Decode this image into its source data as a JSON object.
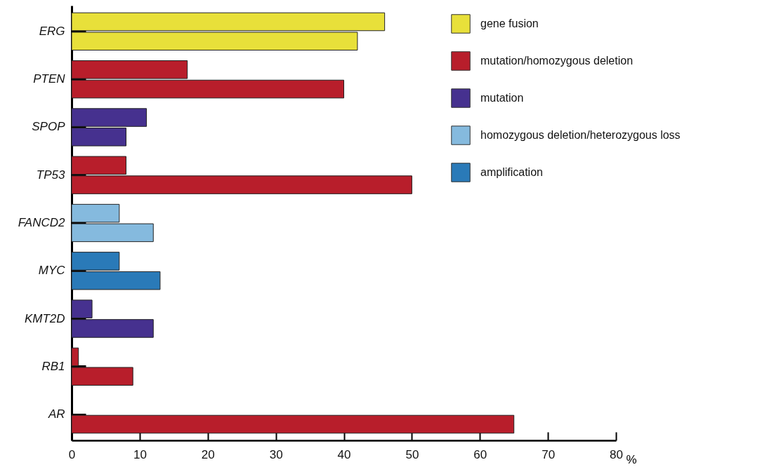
{
  "chart_data": {
    "type": "bar",
    "orientation": "horizontal",
    "xlabel": "%",
    "categories": [
      "ERG",
      "PTEN",
      "SPOP",
      "TP53",
      "FANCD2",
      "MYC",
      "KMT2D",
      "RB1",
      "AR"
    ],
    "series": [
      {
        "name": "gene fusion",
        "color": "#e8e03a",
        "values": [
          46,
          null,
          null,
          null,
          null,
          null,
          null,
          null,
          null
        ]
      },
      {
        "color": "#e8e03a",
        "values": [
          42,
          null,
          null,
          null,
          null,
          null,
          null,
          null,
          null
        ]
      },
      {
        "name": "mutation/homozygous deletion",
        "color": "#b81e2b",
        "values": [
          null,
          17,
          null,
          8,
          null,
          null,
          null,
          1,
          null
        ]
      },
      {
        "color": "#b81e2b",
        "values": [
          null,
          40,
          null,
          50,
          null,
          null,
          null,
          9,
          65
        ]
      },
      {
        "name": "mutation",
        "color": "#46318f",
        "values": [
          null,
          null,
          11,
          null,
          null,
          null,
          3,
          null,
          null
        ]
      },
      {
        "color": "#46318f",
        "values": [
          null,
          null,
          8,
          null,
          null,
          null,
          12,
          null,
          null
        ]
      },
      {
        "name": "homozygous deletion/heterozygous loss",
        "color": "#85bade",
        "values": [
          null,
          null,
          null,
          null,
          7,
          null,
          null,
          null,
          null
        ]
      },
      {
        "color": "#85bade",
        "values": [
          null,
          null,
          null,
          null,
          12,
          null,
          null,
          null,
          null
        ]
      },
      {
        "name": "amplification",
        "color": "#2a7ab8",
        "values": [
          null,
          null,
          null,
          null,
          null,
          7,
          null,
          null,
          null
        ]
      },
      {
        "color": "#2a7ab8",
        "values": [
          null,
          null,
          null,
          null,
          null,
          13,
          null,
          null,
          null
        ]
      }
    ],
    "xlim": [
      0,
      80
    ],
    "xticks": [
      0,
      10,
      20,
      30,
      40,
      50,
      60,
      70,
      80
    ],
    "grid": false,
    "legend": "top right"
  }
}
